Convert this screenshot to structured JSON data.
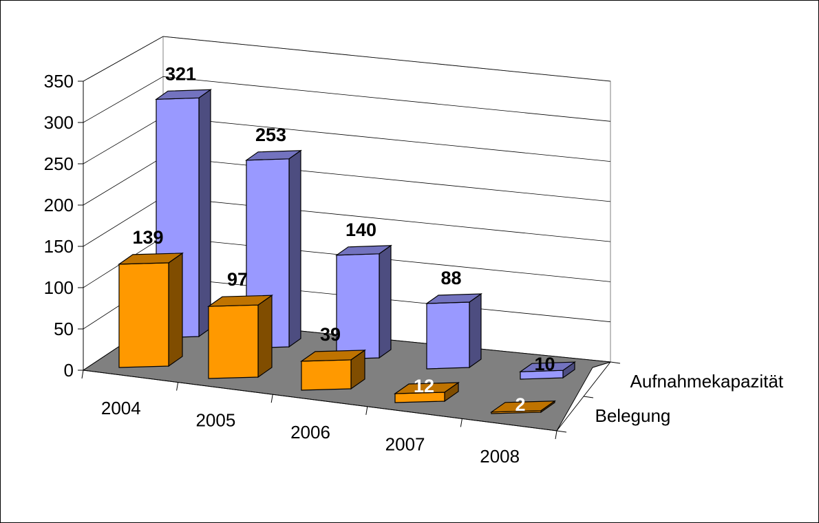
{
  "chart_data": {
    "type": "bar",
    "subtype": "3d-column",
    "title": "",
    "xlabel": "",
    "ylabel": "",
    "categories": [
      "2004",
      "2005",
      "2006",
      "2007",
      "2008"
    ],
    "ylim": [
      0,
      350
    ],
    "yticks": [
      0,
      50,
      100,
      150,
      200,
      250,
      300,
      350
    ],
    "grid": true,
    "series": [
      {
        "name": "Belegung",
        "values": [
          139,
          97,
          39,
          12,
          2
        ],
        "color": "#ff9900",
        "label_colors": [
          "#000000",
          "#000000",
          "#000000",
          "#ffffff",
          "#ffffff"
        ]
      },
      {
        "name": "Aufnahmekapazität",
        "values": [
          321,
          253,
          140,
          88,
          10
        ],
        "color": "#9999ff",
        "label_colors": [
          "#000000",
          "#000000",
          "#000000",
          "#000000",
          "#000000"
        ]
      }
    ],
    "floor_color": "#808080"
  }
}
